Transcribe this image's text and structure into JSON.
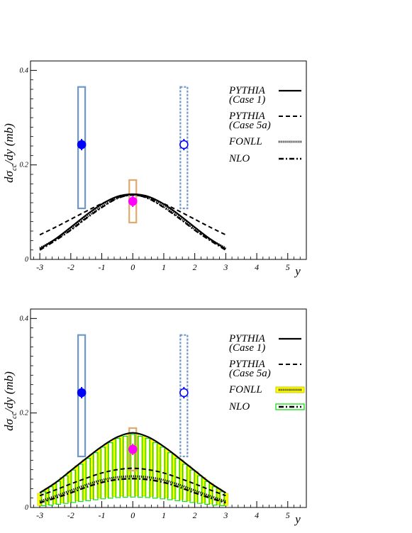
{
  "chart_data": [
    {
      "id": "top",
      "type": "line",
      "ylabel_main": "dσ",
      "ylabel_sub": "cc̄",
      "ylabel_rest": "/dy (mb)",
      "xlabel": "y",
      "xlim": [
        -3.3,
        5.6
      ],
      "ylim": [
        0,
        0.42
      ],
      "x_ticks": [
        -3,
        -2,
        -1,
        0,
        1,
        2,
        3,
        4,
        5
      ],
      "x_tick_labels": [
        "-3",
        "-2",
        "-1",
        "0",
        "1",
        "2",
        "3",
        "4",
        "5"
      ],
      "y_ticks": [
        0,
        0.2,
        0.4
      ],
      "y_tick_labels": [
        "0",
        "0.2",
        "0.4"
      ],
      "legend": [
        {
          "line1": "PYTHIA",
          "line2": "(Case 1)",
          "style": "solid"
        },
        {
          "line1": "PYTHIA",
          "line2": "(Case 5a)",
          "style": "dashed"
        },
        {
          "line1": "FONLL",
          "line2": "",
          "style": "dotted"
        },
        {
          "line1": "NLO",
          "line2": "",
          "style": "dashdot"
        }
      ],
      "series": [
        {
          "name": "PYTHIA (Case 1)",
          "style": "solid",
          "x": [
            -3,
            -2.5,
            -2,
            -1.5,
            -1,
            -0.5,
            0,
            0.5,
            1,
            1.5,
            2,
            2.5,
            3
          ],
          "y": [
            0.022,
            0.043,
            0.068,
            0.094,
            0.117,
            0.133,
            0.138,
            0.133,
            0.117,
            0.094,
            0.068,
            0.043,
            0.022
          ]
        },
        {
          "name": "PYTHIA (Case 5a)",
          "style": "dashed",
          "x": [
            -3,
            -2.5,
            -2,
            -1.5,
            -1,
            -0.5,
            0,
            0.5,
            1,
            1.5,
            2,
            2.5,
            3
          ],
          "y": [
            0.052,
            0.068,
            0.085,
            0.102,
            0.118,
            0.131,
            0.136,
            0.131,
            0.118,
            0.102,
            0.085,
            0.068,
            0.052
          ]
        },
        {
          "name": "FONLL",
          "style": "dotted",
          "x": [
            -3,
            -2.5,
            -2,
            -1.5,
            -1,
            -0.5,
            0,
            0.5,
            1,
            1.5,
            2,
            2.5,
            3
          ],
          "y": [
            0.024,
            0.042,
            0.064,
            0.089,
            0.112,
            0.13,
            0.137,
            0.13,
            0.112,
            0.089,
            0.064,
            0.042,
            0.024
          ]
        },
        {
          "name": "NLO",
          "style": "dashdot",
          "x": [
            -3,
            -2.5,
            -2,
            -1.5,
            -1,
            -0.5,
            0,
            0.5,
            1,
            1.5,
            2,
            2.5,
            3
          ],
          "y": [
            0.02,
            0.04,
            0.062,
            0.087,
            0.11,
            0.129,
            0.137,
            0.129,
            0.11,
            0.087,
            0.062,
            0.04,
            0.02
          ]
        }
      ],
      "data_points": [
        {
          "x": -1.65,
          "y": 0.243,
          "err": 0.012,
          "sys_low": 0.108,
          "sys_high": 0.365,
          "marker": "filled",
          "color": "#0000ff",
          "box_color": "#6f97c9",
          "box_style": "solid"
        },
        {
          "x": 0,
          "y": 0.123,
          "err": 0.012,
          "sys_low": 0.078,
          "sys_high": 0.168,
          "marker": "filled",
          "color": "#ff00ff",
          "box_color": "#e3a86b",
          "box_style": "solid"
        },
        {
          "x": 1.65,
          "y": 0.243,
          "err": 0.012,
          "sys_low": 0.108,
          "sys_high": 0.365,
          "marker": "open",
          "color": "#0000ff",
          "box_color": "#6f97c9",
          "box_style": "dashed"
        }
      ]
    },
    {
      "id": "bottom",
      "type": "line",
      "ylabel_main": "dσ",
      "ylabel_sub": "cc̄",
      "ylabel_rest": "/dy (mb)",
      "xlabel": "y",
      "xlim": [
        -3.3,
        5.6
      ],
      "ylim": [
        0,
        0.42
      ],
      "x_ticks": [
        -3,
        -2,
        -1,
        0,
        1,
        2,
        3,
        4,
        5
      ],
      "x_tick_labels": [
        "-3",
        "-2",
        "-1",
        "0",
        "1",
        "2",
        "3",
        "4",
        "5"
      ],
      "y_ticks": [
        0,
        0.2,
        0.4
      ],
      "y_tick_labels": [
        "0",
        "0.2",
        "0.4"
      ],
      "legend": [
        {
          "line1": "PYTHIA",
          "line2": "(Case 1)",
          "style": "solid"
        },
        {
          "line1": "PYTHIA",
          "line2": "(Case 5a)",
          "style": "dashed"
        },
        {
          "line1": "FONLL",
          "line2": "",
          "style": "band-yellow"
        },
        {
          "line1": "NLO",
          "line2": "",
          "style": "band-green"
        }
      ],
      "series": [
        {
          "name": "PYTHIA (Case 1)",
          "style": "solid",
          "x": [
            -3,
            -2.5,
            -2,
            -1.5,
            -1,
            -0.5,
            0,
            0.5,
            1,
            1.5,
            2,
            2.5,
            3
          ],
          "y": [
            0.031,
            0.052,
            0.078,
            0.104,
            0.129,
            0.149,
            0.158,
            0.149,
            0.129,
            0.104,
            0.078,
            0.052,
            0.031
          ]
        },
        {
          "name": "PYTHIA (Case 5a)",
          "style": "dashed",
          "x": [
            -3,
            -2.5,
            -2,
            -1.5,
            -1,
            -0.5,
            0,
            0.5,
            1,
            1.5,
            2,
            2.5,
            3
          ],
          "y": [
            0.025,
            0.037,
            0.05,
            0.062,
            0.073,
            0.08,
            0.083,
            0.08,
            0.073,
            0.062,
            0.05,
            0.037,
            0.025
          ]
        },
        {
          "name": "FONLL",
          "style": "dotted",
          "x": [
            -3,
            -2.5,
            -2,
            -1.5,
            -1,
            -0.5,
            0,
            0.5,
            1,
            1.5,
            2,
            2.5,
            3
          ],
          "y": [
            0.013,
            0.024,
            0.036,
            0.048,
            0.058,
            0.064,
            0.066,
            0.064,
            0.058,
            0.048,
            0.036,
            0.024,
            0.013
          ]
        },
        {
          "name": "NLO",
          "style": "dashdot",
          "x": [
            -3,
            -2.5,
            -2,
            -1.5,
            -1,
            -0.5,
            0,
            0.5,
            1,
            1.5,
            2,
            2.5,
            3
          ],
          "y": [
            0.01,
            0.02,
            0.031,
            0.043,
            0.053,
            0.059,
            0.061,
            0.059,
            0.053,
            0.043,
            0.031,
            0.02,
            0.01
          ]
        }
      ],
      "bands": [
        {
          "name": "FONLL",
          "color": "#ffff00",
          "edge": "#c8c800",
          "x": [
            -3,
            -2.5,
            -2,
            -1.5,
            -1,
            -0.5,
            0,
            0.5,
            1,
            1.5,
            2,
            2.5,
            3
          ],
          "low": [
            0.004,
            0.008,
            0.012,
            0.017,
            0.021,
            0.024,
            0.025,
            0.024,
            0.021,
            0.017,
            0.012,
            0.008,
            0.004
          ],
          "high": [
            0.03,
            0.052,
            0.078,
            0.104,
            0.128,
            0.148,
            0.157,
            0.148,
            0.128,
            0.104,
            0.078,
            0.052,
            0.03
          ]
        },
        {
          "name": "NLO",
          "color": "#00dd00",
          "edge": "#00dd00",
          "x": [
            -3,
            -2.5,
            -2,
            -1.5,
            -1,
            -0.5,
            0,
            0.5,
            1,
            1.5,
            2,
            2.5,
            3
          ],
          "low": [
            0.003,
            0.006,
            0.01,
            0.014,
            0.018,
            0.021,
            0.022,
            0.021,
            0.018,
            0.014,
            0.01,
            0.006,
            0.003
          ],
          "high": [
            0.028,
            0.05,
            0.075,
            0.101,
            0.126,
            0.146,
            0.155,
            0.146,
            0.126,
            0.101,
            0.075,
            0.05,
            0.028
          ]
        }
      ],
      "data_points": [
        {
          "x": -1.65,
          "y": 0.243,
          "err": 0.012,
          "sys_low": 0.108,
          "sys_high": 0.365,
          "marker": "filled",
          "color": "#0000ff",
          "box_color": "#6f97c9",
          "box_style": "solid"
        },
        {
          "x": 0,
          "y": 0.123,
          "err": 0.012,
          "sys_low": 0.078,
          "sys_high": 0.168,
          "marker": "filled",
          "color": "#ff00ff",
          "box_color": "#e3a86b",
          "box_style": "solid"
        },
        {
          "x": 1.65,
          "y": 0.243,
          "err": 0.012,
          "sys_low": 0.108,
          "sys_high": 0.365,
          "marker": "open",
          "color": "#0000ff",
          "box_color": "#6f97c9",
          "box_style": "dashed"
        }
      ]
    }
  ]
}
